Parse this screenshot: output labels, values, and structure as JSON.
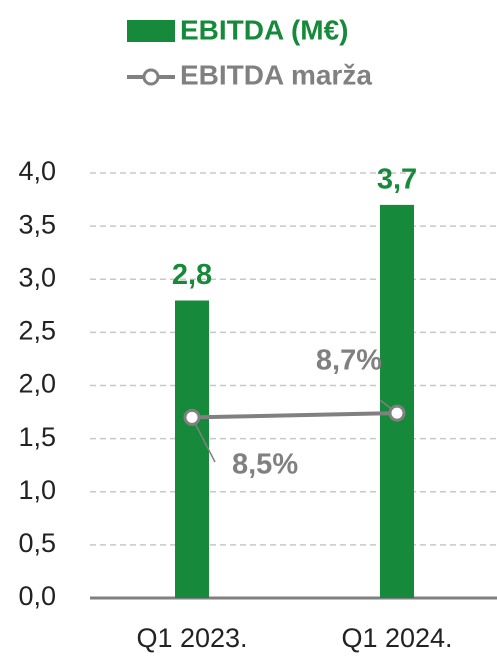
{
  "chart_data": {
    "type": "bar",
    "categories": [
      "Q1 2023.",
      "Q1 2024."
    ],
    "series": [
      {
        "name": "EBITDA (M€)",
        "type": "bar",
        "color": "#168a3a",
        "values": [
          2.8,
          3.7
        ],
        "value_labels": [
          "2,8",
          "3,7"
        ]
      },
      {
        "name": "EBITDA marža",
        "type": "line",
        "axis": "y2",
        "color": "#808080",
        "values": [
          8.5,
          8.7
        ],
        "value_labels": [
          "8,5%",
          "8,7%"
        ]
      }
    ],
    "ylim": [
      0,
      4
    ],
    "yticks": [
      {
        "value": 0,
        "label": "0,0"
      },
      {
        "value": 0.5,
        "label": "0,5"
      },
      {
        "value": 1,
        "label": "1,0"
      },
      {
        "value": 1.5,
        "label": "1,5"
      },
      {
        "value": 2,
        "label": "2,0"
      },
      {
        "value": 2.5,
        "label": "2,5"
      },
      {
        "value": 3,
        "label": "3,0"
      },
      {
        "value": 3.5,
        "label": "3,5"
      },
      {
        "value": 4,
        "label": "4,0"
      }
    ],
    "y2lim": [
      0,
      20
    ],
    "grid": true
  }
}
